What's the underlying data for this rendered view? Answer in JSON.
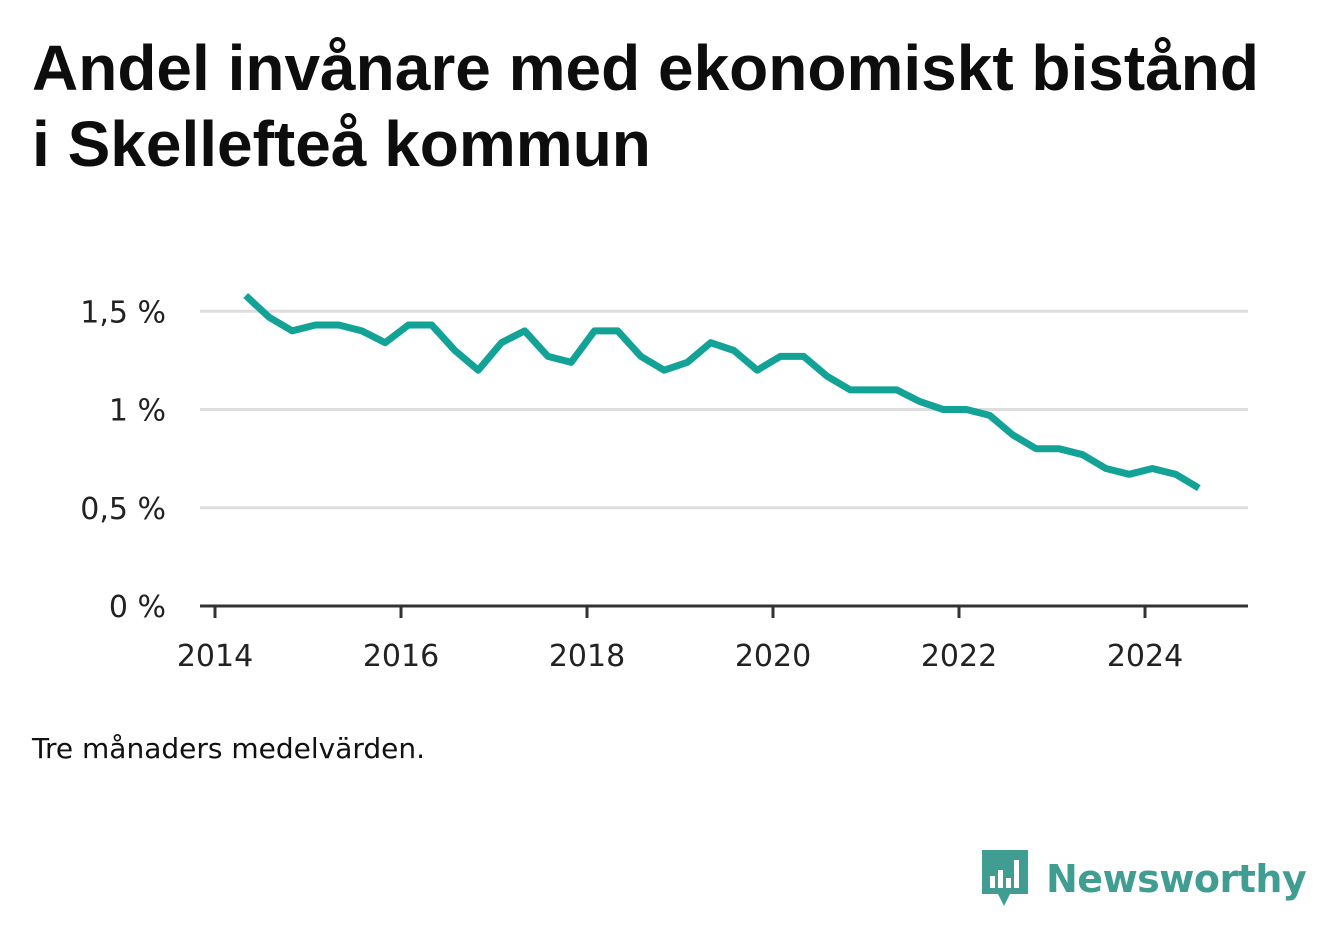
{
  "title": "Andel invånare med ekonomiskt bistånd i Skellefteå kommun",
  "note": "Tre månaders medelvärden.",
  "brand": {
    "name": "Newsworthy",
    "color": "#3f9d91",
    "icon": "bar-chart-speech-bubble-icon"
  },
  "colors": {
    "line": "#12a396",
    "grid": "#dddddd",
    "axis": "#333333"
  },
  "chart_data": {
    "type": "line",
    "title": "Andel invånare med ekonomiskt bistånd i Skellefteå kommun",
    "xlabel": "",
    "ylabel": "",
    "xlim": [
      2014,
      2025.2
    ],
    "ylim": [
      0,
      1.6
    ],
    "x_ticks": [
      2014,
      2016,
      2018,
      2020,
      2022,
      2024
    ],
    "x_tick_labels": [
      "2014",
      "2016",
      "2018",
      "2020",
      "2022",
      "2024"
    ],
    "y_ticks": [
      0,
      0.5,
      1,
      1.5
    ],
    "y_tick_labels": [
      "0 %",
      "0,5 %",
      "1 %",
      "1,5 %"
    ],
    "grid": true,
    "legend": "none",
    "series": [
      {
        "x": [
          2014.33,
          2014.58,
          2014.83,
          2015.08,
          2015.33,
          2015.58,
          2015.83,
          2016.08,
          2016.33,
          2016.58,
          2016.83,
          2017.08,
          2017.33,
          2017.58,
          2017.83,
          2018.08,
          2018.33,
          2018.58,
          2018.83,
          2019.08,
          2019.33,
          2019.58,
          2019.83,
          2020.08,
          2020.33,
          2020.58,
          2020.83,
          2021.08,
          2021.33,
          2021.58,
          2021.83,
          2022.08,
          2022.33,
          2022.58,
          2022.83,
          2023.08,
          2023.33,
          2023.58,
          2023.83,
          2024.08,
          2024.33,
          2024.58
        ],
        "y": [
          1.58,
          1.47,
          1.4,
          1.43,
          1.43,
          1.4,
          1.34,
          1.43,
          1.43,
          1.3,
          1.2,
          1.34,
          1.4,
          1.27,
          1.24,
          1.4,
          1.4,
          1.27,
          1.2,
          1.24,
          1.34,
          1.3,
          1.2,
          1.27,
          1.27,
          1.17,
          1.1,
          1.1,
          1.1,
          1.04,
          1.0,
          1.0,
          0.97,
          0.87,
          0.8,
          0.8,
          0.77,
          0.7,
          0.67,
          0.7,
          0.67,
          0.6
        ]
      }
    ]
  }
}
